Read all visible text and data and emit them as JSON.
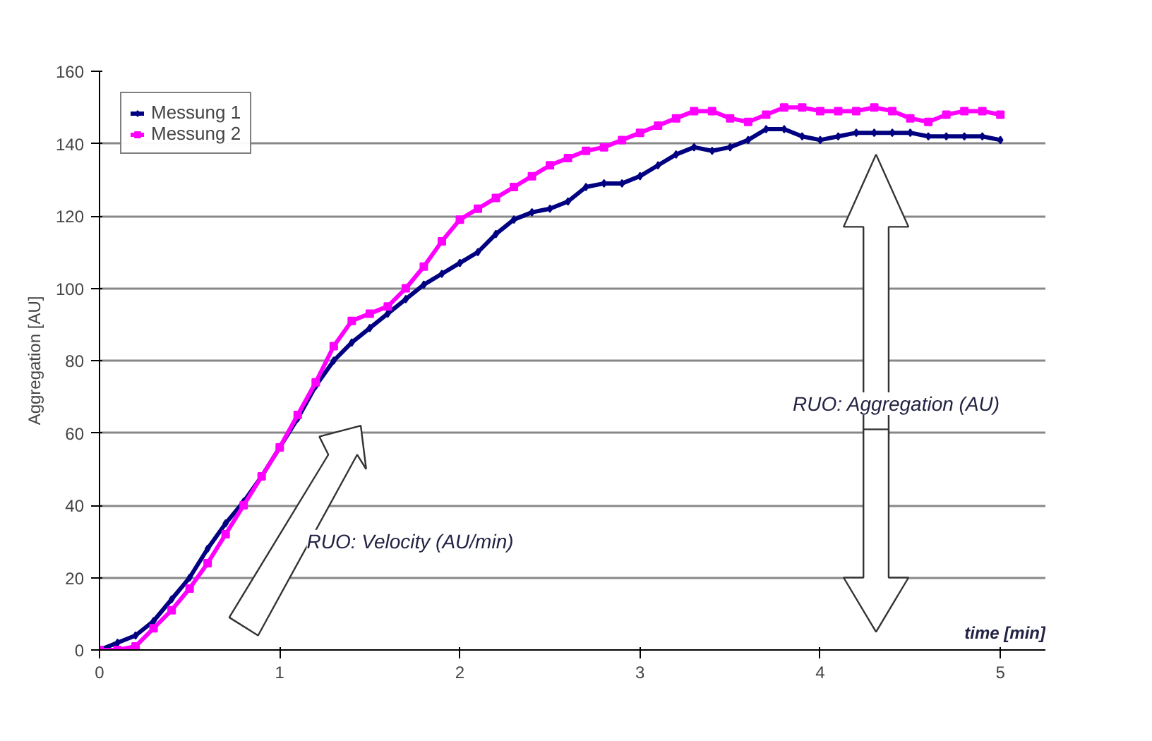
{
  "chart_data": {
    "type": "line",
    "xlabel": "time [min]",
    "ylabel": "Aggregation [AU]",
    "x": [
      0,
      0.1,
      0.2,
      0.3,
      0.4,
      0.5,
      0.6,
      0.7,
      0.8,
      0.9,
      1.0,
      1.1,
      1.2,
      1.3,
      1.4,
      1.5,
      1.6,
      1.7,
      1.8,
      1.9,
      2.0,
      2.1,
      2.2,
      2.3,
      2.4,
      2.5,
      2.6,
      2.7,
      2.8,
      2.9,
      3.0,
      3.1,
      3.2,
      3.3,
      3.4,
      3.5,
      3.6,
      3.7,
      3.8,
      3.9,
      4.0,
      4.1,
      4.2,
      4.3,
      4.4,
      4.5,
      4.6,
      4.7,
      4.8,
      4.9,
      5.0
    ],
    "series": [
      {
        "name": "Messung 1",
        "color": "#000080",
        "marker": "diamond",
        "values": [
          0,
          2,
          4,
          8,
          14,
          20,
          28,
          35,
          41,
          48,
          56,
          64,
          73,
          80,
          85,
          89,
          93,
          97,
          101,
          104,
          107,
          110,
          115,
          119,
          121,
          122,
          124,
          128,
          129,
          129,
          131,
          134,
          137,
          139,
          138,
          139,
          141,
          144,
          144,
          142,
          141,
          142,
          143,
          143,
          143,
          143,
          142,
          142,
          142,
          142,
          141
        ]
      },
      {
        "name": "Messung 2",
        "color": "#ff00ff",
        "marker": "square",
        "values": [
          0,
          0,
          1,
          6,
          11,
          17,
          24,
          32,
          40,
          48,
          56,
          65,
          74,
          84,
          91,
          93,
          95,
          100,
          106,
          113,
          119,
          122,
          125,
          128,
          131,
          134,
          136,
          138,
          139,
          141,
          143,
          145,
          147,
          149,
          149,
          147,
          146,
          148,
          150,
          150,
          149,
          149,
          149,
          150,
          149,
          147,
          146,
          148,
          149,
          149,
          148
        ]
      }
    ],
    "xlim": [
      0,
      5.25
    ],
    "ylim": [
      0,
      160
    ],
    "xticks": [
      0,
      1,
      2,
      3,
      4,
      5
    ],
    "yticks": [
      0,
      20,
      40,
      60,
      80,
      100,
      120,
      140,
      160
    ],
    "grid": "y",
    "legend": "top left",
    "annotations": [
      "RUO: Velocity (AU/min)",
      "RUO: Aggregation (AU)"
    ]
  }
}
